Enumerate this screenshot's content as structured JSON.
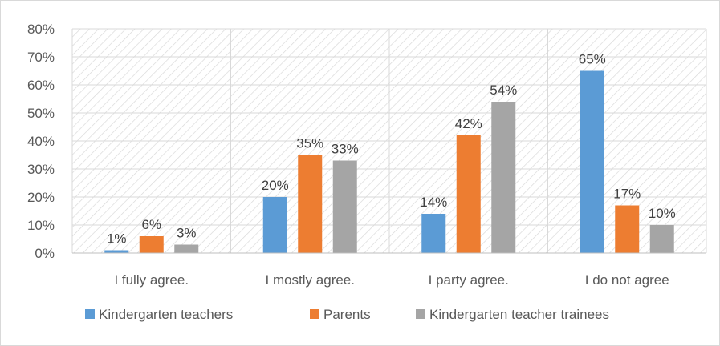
{
  "chart_data": {
    "type": "bar",
    "title": "",
    "xlabel": "",
    "ylabel": "",
    "categories": [
      "I fully agree.",
      "I mostly agree.",
      "I party agree.",
      "I do not agree"
    ],
    "series": [
      {
        "name": "Kindergarten teachers",
        "values": [
          1,
          20,
          14,
          65
        ],
        "labels": [
          "1%",
          "20%",
          "14%",
          "65%"
        ],
        "color": "#5B9BD5"
      },
      {
        "name": "Parents",
        "values": [
          6,
          35,
          42,
          17
        ],
        "labels": [
          "6%",
          "35%",
          "42%",
          "17%"
        ],
        "color": "#ED7D31"
      },
      {
        "name": "Kindergarten teacher trainees",
        "values": [
          3,
          33,
          54,
          10
        ],
        "labels": [
          "3%",
          "33%",
          "54%",
          "10%"
        ],
        "color": "#A5A5A5"
      }
    ],
    "ylim": [
      0,
      80
    ],
    "yticks": [
      0,
      10,
      20,
      30,
      40,
      50,
      60,
      70,
      80
    ],
    "ytick_labels": [
      "0%",
      "10%",
      "20%",
      "30%",
      "40%",
      "50%",
      "60%",
      "70%",
      "80%"
    ],
    "grid": true,
    "legend_position": "bottom"
  }
}
